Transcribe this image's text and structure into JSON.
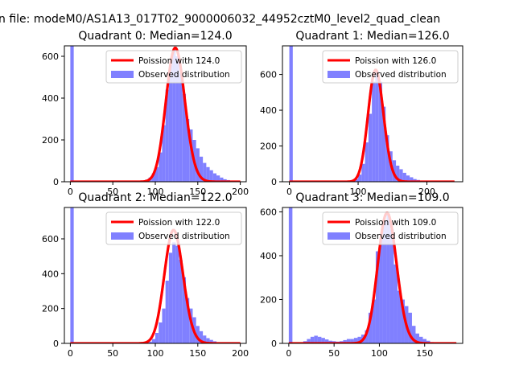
{
  "figure": {
    "suptitle": "n file: modeM0/AS1A13_017T02_9000006032_44952cztM0_level2_quad_clean"
  },
  "colors": {
    "hist": "#8080ff",
    "fit": "#ff0000",
    "axes": "#000000"
  },
  "chart_data": [
    {
      "type": "bar",
      "title": "Quadrant 0: Median=124.0",
      "median": 124.0,
      "xlim": [
        -7,
        207
      ],
      "ylim": [
        0,
        650
      ],
      "xticks": [
        0,
        50,
        100,
        150,
        200
      ],
      "yticks": [
        0,
        200,
        400,
        600
      ],
      "bin_width": 4,
      "legend": {
        "placement": "upper-right",
        "fit_label": "Poission with 124.0",
        "hist_label": "Observed distribution"
      },
      "bins": [
        {
          "x": 0,
          "y": 650
        },
        {
          "x": 80,
          "y": 2
        },
        {
          "x": 84,
          "y": 4
        },
        {
          "x": 88,
          "y": 10
        },
        {
          "x": 92,
          "y": 20
        },
        {
          "x": 96,
          "y": 40
        },
        {
          "x": 100,
          "y": 70
        },
        {
          "x": 104,
          "y": 140
        },
        {
          "x": 108,
          "y": 270
        },
        {
          "x": 112,
          "y": 440
        },
        {
          "x": 116,
          "y": 560
        },
        {
          "x": 120,
          "y": 630
        },
        {
          "x": 124,
          "y": 600
        },
        {
          "x": 128,
          "y": 520
        },
        {
          "x": 132,
          "y": 420
        },
        {
          "x": 136,
          "y": 300
        },
        {
          "x": 140,
          "y": 250
        },
        {
          "x": 144,
          "y": 200
        },
        {
          "x": 148,
          "y": 160
        },
        {
          "x": 152,
          "y": 120
        },
        {
          "x": 156,
          "y": 90
        },
        {
          "x": 160,
          "y": 70
        },
        {
          "x": 164,
          "y": 55
        },
        {
          "x": 168,
          "y": 40
        },
        {
          "x": 172,
          "y": 30
        },
        {
          "x": 176,
          "y": 20
        },
        {
          "x": 180,
          "y": 12
        },
        {
          "x": 184,
          "y": 8
        },
        {
          "x": 188,
          "y": 4
        }
      ],
      "fit": {
        "lambda": 124.0,
        "xmin": 0,
        "xmax": 200,
        "peak": 640
      }
    },
    {
      "type": "bar",
      "title": "Quadrant 1: Median=126.0",
      "median": 126.0,
      "xlim": [
        -10,
        252
      ],
      "ylim": [
        0,
        760
      ],
      "xticks": [
        0,
        100,
        200
      ],
      "yticks": [
        0,
        200,
        400,
        600
      ],
      "bin_width": 5,
      "legend": {
        "placement": "upper-right",
        "fit_label": "Poission with 126.0",
        "hist_label": "Observed distribution"
      },
      "bins": [
        {
          "x": 0,
          "y": 760
        },
        {
          "x": 85,
          "y": 3
        },
        {
          "x": 90,
          "y": 6
        },
        {
          "x": 95,
          "y": 15
        },
        {
          "x": 100,
          "y": 40
        },
        {
          "x": 105,
          "y": 100
        },
        {
          "x": 110,
          "y": 220
        },
        {
          "x": 115,
          "y": 380
        },
        {
          "x": 120,
          "y": 560
        },
        {
          "x": 125,
          "y": 620
        },
        {
          "x": 130,
          "y": 560
        },
        {
          "x": 135,
          "y": 420
        },
        {
          "x": 140,
          "y": 260
        },
        {
          "x": 145,
          "y": 170
        },
        {
          "x": 150,
          "y": 120
        },
        {
          "x": 155,
          "y": 90
        },
        {
          "x": 160,
          "y": 70
        },
        {
          "x": 165,
          "y": 50
        },
        {
          "x": 170,
          "y": 35
        },
        {
          "x": 175,
          "y": 25
        },
        {
          "x": 180,
          "y": 15
        },
        {
          "x": 185,
          "y": 10
        },
        {
          "x": 190,
          "y": 6
        },
        {
          "x": 195,
          "y": 4
        },
        {
          "x": 200,
          "y": 2
        }
      ],
      "fit": {
        "lambda": 126.0,
        "xmin": 0,
        "xmax": 240,
        "peak": 625
      }
    },
    {
      "type": "bar",
      "title": "Quadrant 2: Median=122.0",
      "median": 122.0,
      "xlim": [
        -7,
        207
      ],
      "ylim": [
        0,
        780
      ],
      "xticks": [
        0,
        50,
        100,
        150,
        200
      ],
      "yticks": [
        0,
        200,
        400,
        600
      ],
      "bin_width": 4,
      "legend": {
        "placement": "upper-right",
        "fit_label": "Poission with 122.0",
        "hist_label": "Observed distribution"
      },
      "bins": [
        {
          "x": 0,
          "y": 780
        },
        {
          "x": 88,
          "y": 4
        },
        {
          "x": 92,
          "y": 10
        },
        {
          "x": 96,
          "y": 25
        },
        {
          "x": 100,
          "y": 60
        },
        {
          "x": 104,
          "y": 120
        },
        {
          "x": 108,
          "y": 200
        },
        {
          "x": 112,
          "y": 360
        },
        {
          "x": 116,
          "y": 520
        },
        {
          "x": 120,
          "y": 580
        },
        {
          "x": 124,
          "y": 560
        },
        {
          "x": 128,
          "y": 480
        },
        {
          "x": 132,
          "y": 380
        },
        {
          "x": 136,
          "y": 260
        },
        {
          "x": 140,
          "y": 200
        },
        {
          "x": 144,
          "y": 150
        },
        {
          "x": 148,
          "y": 100
        },
        {
          "x": 152,
          "y": 70
        },
        {
          "x": 156,
          "y": 45
        },
        {
          "x": 160,
          "y": 30
        },
        {
          "x": 164,
          "y": 20
        },
        {
          "x": 168,
          "y": 12
        },
        {
          "x": 172,
          "y": 6
        },
        {
          "x": 176,
          "y": 3
        }
      ],
      "fit": {
        "lambda": 122.0,
        "xmin": 0,
        "xmax": 200,
        "peak": 650
      }
    },
    {
      "type": "bar",
      "title": "Quadrant 3: Median=109.0",
      "median": 109.0,
      "xlim": [
        -7,
        192
      ],
      "ylim": [
        0,
        620
      ],
      "xticks": [
        0,
        50,
        100,
        150
      ],
      "yticks": [
        0,
        200,
        400,
        600
      ],
      "bin_width": 4,
      "legend": {
        "placement": "upper-right",
        "fit_label": "Poission with 109.0",
        "hist_label": "Observed distribution"
      },
      "bins": [
        {
          "x": 0,
          "y": 620
        },
        {
          "x": 16,
          "y": 10
        },
        {
          "x": 20,
          "y": 20
        },
        {
          "x": 24,
          "y": 30
        },
        {
          "x": 28,
          "y": 35
        },
        {
          "x": 32,
          "y": 30
        },
        {
          "x": 36,
          "y": 25
        },
        {
          "x": 40,
          "y": 18
        },
        {
          "x": 44,
          "y": 12
        },
        {
          "x": 48,
          "y": 10
        },
        {
          "x": 52,
          "y": 8
        },
        {
          "x": 56,
          "y": 10
        },
        {
          "x": 60,
          "y": 15
        },
        {
          "x": 64,
          "y": 20
        },
        {
          "x": 68,
          "y": 20
        },
        {
          "x": 72,
          "y": 25
        },
        {
          "x": 76,
          "y": 30
        },
        {
          "x": 80,
          "y": 40
        },
        {
          "x": 84,
          "y": 60
        },
        {
          "x": 88,
          "y": 140
        },
        {
          "x": 92,
          "y": 200
        },
        {
          "x": 96,
          "y": 420
        },
        {
          "x": 100,
          "y": 480
        },
        {
          "x": 104,
          "y": 560
        },
        {
          "x": 108,
          "y": 590
        },
        {
          "x": 112,
          "y": 520
        },
        {
          "x": 116,
          "y": 360
        },
        {
          "x": 120,
          "y": 240
        },
        {
          "x": 124,
          "y": 200
        },
        {
          "x": 128,
          "y": 170
        },
        {
          "x": 132,
          "y": 140
        },
        {
          "x": 136,
          "y": 80
        },
        {
          "x": 140,
          "y": 45
        },
        {
          "x": 144,
          "y": 30
        },
        {
          "x": 148,
          "y": 20
        },
        {
          "x": 152,
          "y": 12
        },
        {
          "x": 156,
          "y": 6
        },
        {
          "x": 160,
          "y": 3
        }
      ],
      "fit": {
        "lambda": 109.0,
        "xmin": 0,
        "xmax": 185,
        "peak": 595
      }
    }
  ]
}
